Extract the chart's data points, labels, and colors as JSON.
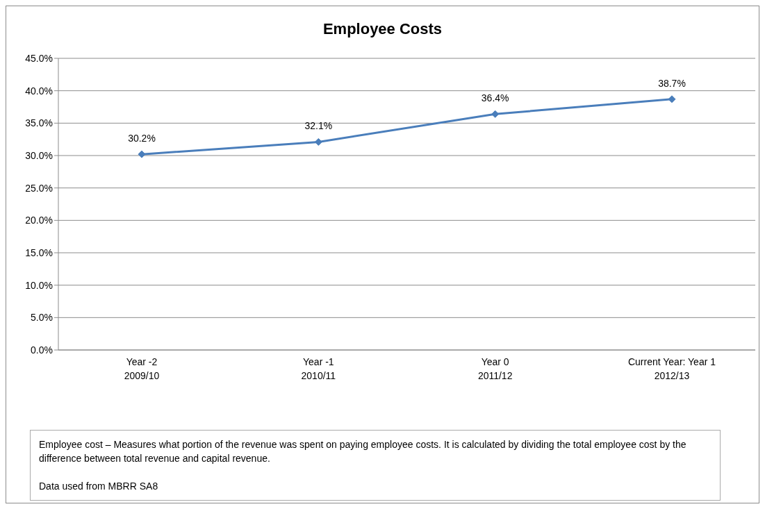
{
  "chart_data": {
    "type": "line",
    "title": "Employee Costs",
    "categories": [
      "Year -2\n2009/10",
      "Year -1\n2010/11",
      "Year 0\n2011/12",
      "Current Year: Year 1\n2012/13"
    ],
    "series": [
      {
        "color": "#4a7ebb",
        "values": [
          30.2,
          32.1,
          36.4,
          38.7
        ],
        "value_labels": [
          "30.2%",
          "32.1%",
          "36.4%",
          "38.7%"
        ]
      }
    ],
    "ylim": [
      0,
      45
    ],
    "yticks": [
      {
        "value": 0,
        "label": "0.0%"
      },
      {
        "value": 5,
        "label": "5.0%"
      },
      {
        "value": 10,
        "label": "10.0%"
      },
      {
        "value": 15,
        "label": "15.0%"
      },
      {
        "value": 20,
        "label": "20.0%"
      },
      {
        "value": 25,
        "label": "25.0%"
      },
      {
        "value": 30,
        "label": "30.0%"
      },
      {
        "value": 35,
        "label": "35.0%"
      },
      {
        "value": 40,
        "label": "40.0%"
      },
      {
        "value": 45,
        "label": "45.0%"
      }
    ],
    "grid": "y",
    "legend": false,
    "marker": "diamond",
    "line_style": "solid",
    "annotations": [
      "Employee cost – Measures what portion of the revenue was spent on paying employee costs. It is calculated by dividing the total employee cost by the difference between total revenue and capital revenue.",
      "Data used from MBRR SA8"
    ]
  }
}
